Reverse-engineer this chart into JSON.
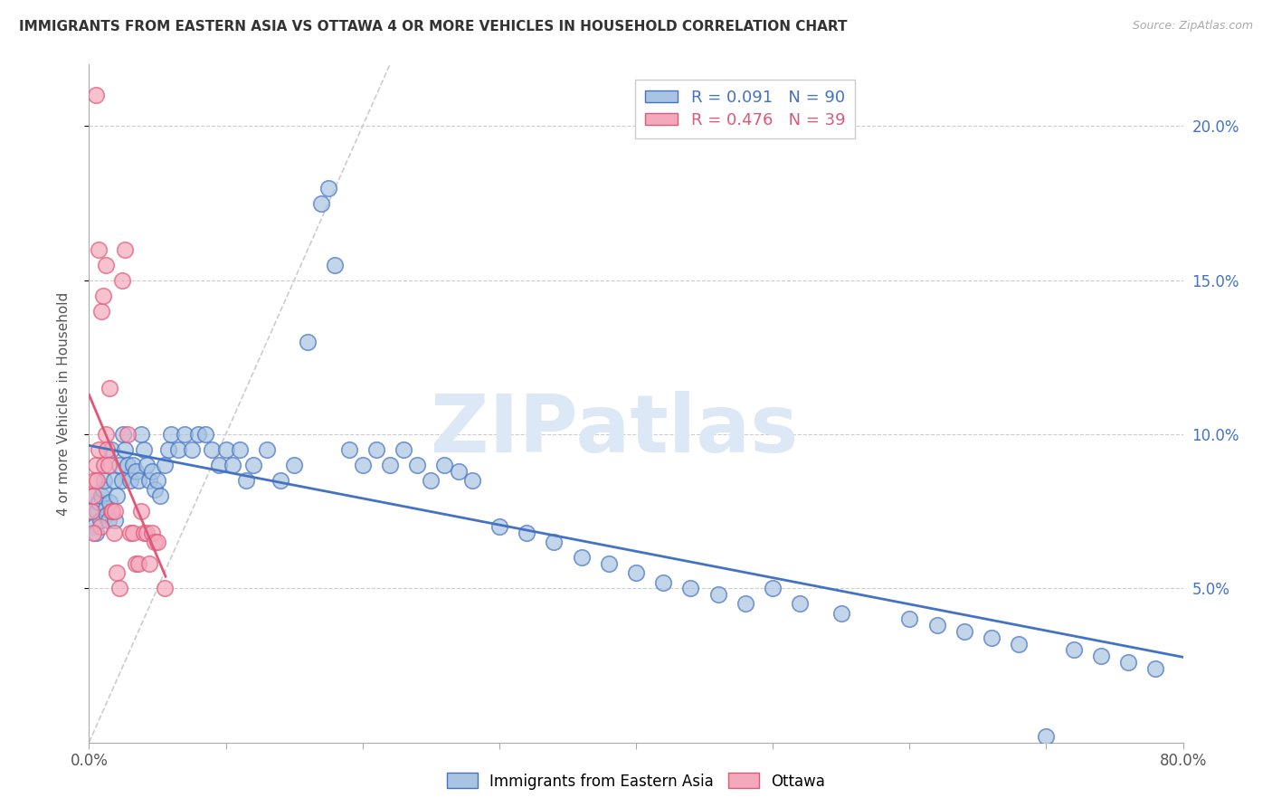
{
  "title": "IMMIGRANTS FROM EASTERN ASIA VS OTTAWA 4 OR MORE VEHICLES IN HOUSEHOLD CORRELATION CHART",
  "source": "Source: ZipAtlas.com",
  "ylabel": "4 or more Vehicles in Household",
  "blue_label": "Immigrants from Eastern Asia",
  "pink_label": "Ottawa",
  "blue_R": "0.091",
  "blue_N": "90",
  "pink_R": "0.476",
  "pink_N": "39",
  "blue_color": "#a8c4e0",
  "pink_color": "#f4a8bc",
  "blue_edge_color": "#4472c4",
  "pink_edge_color": "#e05878",
  "blue_line_color": "#4472c4",
  "pink_line_color": "#e05878",
  "diag_color": "#cccccc",
  "watermark": "ZIPatlas",
  "watermark_color": "#dce8f5",
  "xlim": [
    0.0,
    0.8
  ],
  "ylim": [
    0.0,
    0.22
  ],
  "blue_scatter_x": [
    0.002,
    0.003,
    0.004,
    0.005,
    0.006,
    0.007,
    0.008,
    0.009,
    0.01,
    0.011,
    0.012,
    0.013,
    0.014,
    0.015,
    0.016,
    0.018,
    0.019,
    0.02,
    0.022,
    0.024,
    0.025,
    0.026,
    0.028,
    0.03,
    0.032,
    0.034,
    0.036,
    0.038,
    0.04,
    0.042,
    0.044,
    0.046,
    0.048,
    0.05,
    0.052,
    0.055,
    0.058,
    0.06,
    0.065,
    0.07,
    0.075,
    0.08,
    0.085,
    0.09,
    0.095,
    0.1,
    0.105,
    0.11,
    0.115,
    0.12,
    0.13,
    0.14,
    0.15,
    0.16,
    0.17,
    0.18,
    0.19,
    0.2,
    0.21,
    0.22,
    0.23,
    0.24,
    0.25,
    0.26,
    0.27,
    0.28,
    0.3,
    0.32,
    0.34,
    0.36,
    0.38,
    0.4,
    0.42,
    0.44,
    0.46,
    0.48,
    0.5,
    0.52,
    0.55,
    0.6,
    0.62,
    0.64,
    0.66,
    0.68,
    0.7,
    0.72,
    0.74,
    0.76,
    0.78,
    0.175
  ],
  "blue_scatter_y": [
    0.075,
    0.08,
    0.07,
    0.068,
    0.075,
    0.078,
    0.072,
    0.08,
    0.082,
    0.085,
    0.076,
    0.074,
    0.072,
    0.078,
    0.095,
    0.085,
    0.072,
    0.08,
    0.09,
    0.085,
    0.1,
    0.095,
    0.09,
    0.085,
    0.09,
    0.088,
    0.085,
    0.1,
    0.095,
    0.09,
    0.085,
    0.088,
    0.082,
    0.085,
    0.08,
    0.09,
    0.095,
    0.1,
    0.095,
    0.1,
    0.095,
    0.1,
    0.1,
    0.095,
    0.09,
    0.095,
    0.09,
    0.095,
    0.085,
    0.09,
    0.095,
    0.085,
    0.09,
    0.13,
    0.175,
    0.155,
    0.095,
    0.09,
    0.095,
    0.09,
    0.095,
    0.09,
    0.085,
    0.09,
    0.088,
    0.085,
    0.07,
    0.068,
    0.065,
    0.06,
    0.058,
    0.055,
    0.052,
    0.05,
    0.048,
    0.045,
    0.05,
    0.045,
    0.042,
    0.04,
    0.038,
    0.036,
    0.034,
    0.032,
    0.002,
    0.03,
    0.028,
    0.026,
    0.024,
    0.18
  ],
  "pink_scatter_x": [
    0.002,
    0.003,
    0.004,
    0.005,
    0.006,
    0.007,
    0.008,
    0.009,
    0.01,
    0.011,
    0.012,
    0.013,
    0.014,
    0.015,
    0.016,
    0.017,
    0.018,
    0.019,
    0.02,
    0.022,
    0.024,
    0.026,
    0.028,
    0.03,
    0.032,
    0.034,
    0.036,
    0.038,
    0.04,
    0.042,
    0.044,
    0.046,
    0.048,
    0.05,
    0.055,
    0.007,
    0.012,
    0.005,
    0.003
  ],
  "pink_scatter_y": [
    0.075,
    0.08,
    0.085,
    0.09,
    0.085,
    0.095,
    0.07,
    0.14,
    0.145,
    0.09,
    0.1,
    0.095,
    0.09,
    0.115,
    0.075,
    0.075,
    0.068,
    0.075,
    0.055,
    0.05,
    0.15,
    0.16,
    0.1,
    0.068,
    0.068,
    0.058,
    0.058,
    0.075,
    0.068,
    0.068,
    0.058,
    0.068,
    0.065,
    0.065,
    0.05,
    0.16,
    0.155,
    0.21,
    0.068
  ]
}
